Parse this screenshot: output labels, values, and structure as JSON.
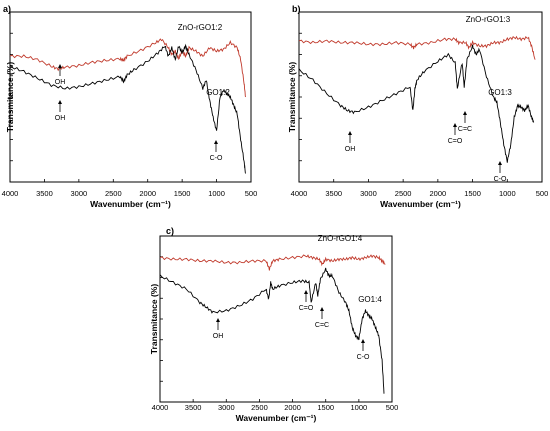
{
  "chart_data": [
    {
      "type": "line",
      "panel_label": "a)",
      "xlabel": "Wavenumber (cm⁻¹)",
      "ylabel": "Transmitance (%)",
      "xlim": [
        4000,
        500
      ],
      "xticks": [
        4000,
        3500,
        3000,
        2500,
        2000,
        1500,
        1000,
        500
      ],
      "series": [
        {
          "name": "ZnO-rGO1:2",
          "color": "#c0392b",
          "x": [
            4000,
            3800,
            3600,
            3400,
            3300,
            3200,
            3000,
            2800,
            2600,
            2400,
            2350,
            2300,
            2100,
            1900,
            1800,
            1700,
            1650,
            1600,
            1550,
            1500,
            1450,
            1400,
            1300,
            1200,
            1100,
            1000,
            900,
            800,
            700,
            650,
            600,
            580
          ],
          "values": [
            0.74,
            0.74,
            0.72,
            0.68,
            0.665,
            0.675,
            0.685,
            0.705,
            0.715,
            0.725,
            0.715,
            0.74,
            0.775,
            0.815,
            0.84,
            0.79,
            0.75,
            0.77,
            0.725,
            0.77,
            0.74,
            0.79,
            0.77,
            0.74,
            0.79,
            0.77,
            0.78,
            0.82,
            0.79,
            0.72,
            0.58,
            0.5
          ]
        },
        {
          "name": "GO1:2",
          "color": "#000000",
          "x": [
            4000,
            3800,
            3600,
            3400,
            3200,
            3000,
            2800,
            2600,
            2400,
            2350,
            2300,
            2200,
            2000,
            1850,
            1750,
            1700,
            1650,
            1600,
            1550,
            1500,
            1450,
            1400,
            1300,
            1200,
            1150,
            1100,
            1050,
            1000,
            950,
            900,
            850,
            800,
            750,
            700,
            650,
            600,
            580
          ],
          "values": [
            0.68,
            0.65,
            0.61,
            0.57,
            0.55,
            0.56,
            0.58,
            0.6,
            0.62,
            0.59,
            0.63,
            0.66,
            0.71,
            0.76,
            0.8,
            0.74,
            0.79,
            0.72,
            0.8,
            0.76,
            0.8,
            0.75,
            0.66,
            0.55,
            0.6,
            0.48,
            0.38,
            0.3,
            0.5,
            0.54,
            0.52,
            0.5,
            0.45,
            0.4,
            0.25,
            0.12,
            0.05
          ]
        }
      ],
      "annotations": [
        {
          "text": "OH",
          "x": 3300,
          "arrow": "up"
        },
        {
          "text": "OH",
          "x": 3300,
          "arrow": "up"
        },
        {
          "text": "C-O",
          "x": 1060,
          "arrow": "up"
        }
      ]
    },
    {
      "type": "line",
      "panel_label": "b)",
      "xlabel": "Wavenumber (cm⁻¹)",
      "ylabel": "Transmitance (%)",
      "xlim": [
        4000,
        500
      ],
      "xticks": [
        4000,
        3500,
        3000,
        2500,
        2000,
        1500,
        1000,
        500
      ],
      "series": [
        {
          "name": "ZnO-rGO1:3",
          "color": "#c0392b",
          "x": [
            4000,
            3800,
            3600,
            3400,
            3200,
            3000,
            2800,
            2600,
            2400,
            2350,
            2300,
            2100,
            1900,
            1750,
            1700,
            1600,
            1550,
            1500,
            1400,
            1300,
            1200,
            1100,
            1000,
            900,
            800,
            700,
            650,
            600
          ],
          "values": [
            0.83,
            0.82,
            0.83,
            0.82,
            0.82,
            0.81,
            0.81,
            0.82,
            0.81,
            0.79,
            0.81,
            0.82,
            0.84,
            0.84,
            0.82,
            0.82,
            0.79,
            0.82,
            0.8,
            0.8,
            0.82,
            0.82,
            0.84,
            0.85,
            0.84,
            0.85,
            0.8,
            0.72
          ]
        },
        {
          "name": "GO1:3",
          "color": "#000000",
          "x": [
            4000,
            3800,
            3600,
            3400,
            3300,
            3200,
            3000,
            2800,
            2600,
            2400,
            2360,
            2330,
            2300,
            2200,
            2000,
            1850,
            1750,
            1720,
            1650,
            1620,
            1580,
            1500,
            1450,
            1400,
            1300,
            1200,
            1150,
            1100,
            1050,
            1000,
            950,
            900,
            850,
            800,
            750,
            700,
            650,
            620
          ],
          "values": [
            0.66,
            0.6,
            0.52,
            0.45,
            0.42,
            0.41,
            0.44,
            0.48,
            0.52,
            0.56,
            0.42,
            0.55,
            0.6,
            0.65,
            0.71,
            0.75,
            0.7,
            0.55,
            0.7,
            0.56,
            0.72,
            0.8,
            0.75,
            0.78,
            0.62,
            0.5,
            0.47,
            0.35,
            0.22,
            0.12,
            0.22,
            0.38,
            0.45,
            0.44,
            0.42,
            0.45,
            0.38,
            0.35
          ]
        }
      ],
      "annotations": [
        {
          "text": "OH",
          "x": 3250,
          "arrow": "up"
        },
        {
          "text": "C=O",
          "x": 1730,
          "arrow": "up"
        },
        {
          "text": "C=C",
          "x": 1620,
          "arrow": "up"
        },
        {
          "text": "C-O",
          "x": 1010,
          "arrow": "up"
        }
      ]
    },
    {
      "type": "line",
      "panel_label": "c)",
      "xlabel": "Wavenumber (cm⁻¹)",
      "ylabel": "Transmitance (%)",
      "xlim": [
        4000,
        500
      ],
      "xticks": [
        4000,
        3500,
        3000,
        2500,
        2000,
        1500,
        1000,
        500
      ],
      "series": [
        {
          "name": "ZnO-rGO1:4",
          "color": "#c0392b",
          "x": [
            4000,
            3800,
            3600,
            3400,
            3200,
            3000,
            2800,
            2600,
            2400,
            2350,
            2300,
            2200,
            2000,
            1800,
            1700,
            1600,
            1550,
            1500,
            1400,
            1300,
            1200,
            1100,
            1000,
            900,
            800,
            700,
            650,
            600
          ],
          "values": [
            0.87,
            0.86,
            0.86,
            0.85,
            0.85,
            0.84,
            0.84,
            0.85,
            0.85,
            0.8,
            0.85,
            0.86,
            0.87,
            0.88,
            0.87,
            0.86,
            0.83,
            0.86,
            0.85,
            0.86,
            0.86,
            0.87,
            0.86,
            0.87,
            0.88,
            0.87,
            0.85,
            0.83
          ]
        },
        {
          "name": "GO1:4",
          "color": "#000000",
          "x": [
            4000,
            3800,
            3600,
            3400,
            3300,
            3200,
            3000,
            2800,
            2600,
            2400,
            2360,
            2330,
            2300,
            2200,
            2000,
            1850,
            1750,
            1720,
            1650,
            1620,
            1580,
            1500,
            1450,
            1400,
            1300,
            1200,
            1150,
            1100,
            1050,
            1000,
            950,
            900,
            850,
            800,
            750,
            700,
            650,
            620
          ],
          "values": [
            0.76,
            0.72,
            0.68,
            0.6,
            0.57,
            0.54,
            0.55,
            0.58,
            0.62,
            0.68,
            0.62,
            0.72,
            0.68,
            0.7,
            0.72,
            0.73,
            0.72,
            0.6,
            0.72,
            0.64,
            0.74,
            0.8,
            0.76,
            0.76,
            0.66,
            0.6,
            0.55,
            0.45,
            0.4,
            0.38,
            0.5,
            0.55,
            0.52,
            0.5,
            0.45,
            0.4,
            0.25,
            0.05
          ]
        }
      ],
      "annotations": [
        {
          "text": "OH",
          "x": 3200,
          "arrow": "up"
        },
        {
          "text": "C=O",
          "x": 1730,
          "arrow": "up"
        },
        {
          "text": "C=C",
          "x": 1620,
          "arrow": "up"
        },
        {
          "text": "C-O",
          "x": 1040,
          "arrow": "up"
        }
      ]
    }
  ]
}
